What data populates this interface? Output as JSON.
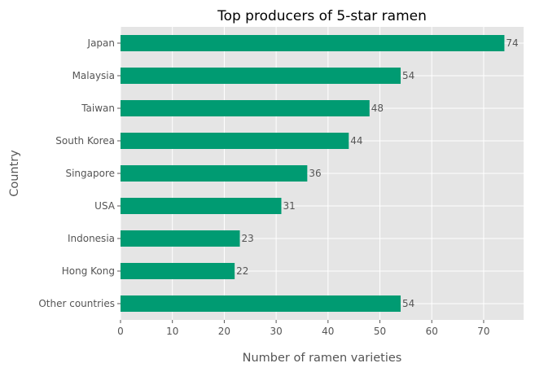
{
  "chart_data": {
    "type": "bar",
    "orientation": "horizontal",
    "title": "Top producers of 5-star ramen",
    "xlabel": "Number of ramen varieties",
    "ylabel": "Country",
    "categories": [
      "Japan",
      "Malaysia",
      "Taiwan",
      "South Korea",
      "Singapore",
      "USA",
      "Indonesia",
      "Hong Kong",
      "Other countries"
    ],
    "values": [
      74,
      54,
      48,
      44,
      36,
      31,
      23,
      22,
      54
    ],
    "xlim": [
      0,
      77.7
    ],
    "xticks": [
      0,
      10,
      20,
      30,
      40,
      50,
      60,
      70
    ],
    "bar_color": "#009b72",
    "plot_background": "#e5e5e5",
    "grid": true,
    "show_value_labels": true
  }
}
